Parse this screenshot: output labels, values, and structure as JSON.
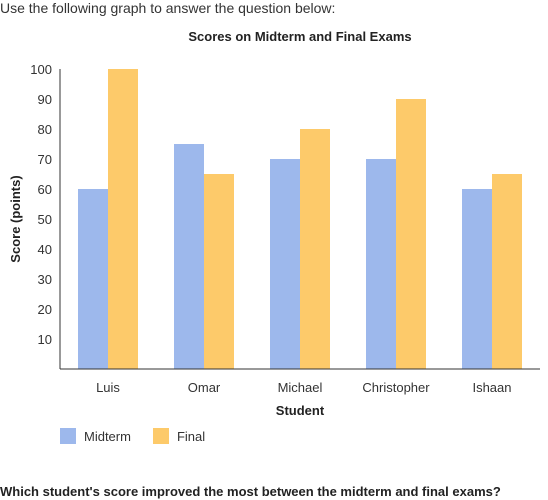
{
  "intro_text": "Use the following graph to answer the question below:",
  "question_text": "Which student's score improved the most between the midterm and final exams?",
  "colors": {
    "midterm": "#9db8ec",
    "final": "#fdca6a",
    "axis": "#333333"
  },
  "chart_data": {
    "type": "bar",
    "title": "Scores on Midterm and Final Exams",
    "xlabel": "Student",
    "ylabel": "Score (points)",
    "ylim": [
      0,
      100
    ],
    "yticks": [
      10,
      20,
      30,
      40,
      50,
      60,
      70,
      80,
      90,
      100
    ],
    "grid": false,
    "legend_position": "bottom-left",
    "categories": [
      "Luis",
      "Omar",
      "Michael",
      "Christopher",
      "Ishaan"
    ],
    "series": [
      {
        "name": "Midterm",
        "values": [
          60,
          75,
          70,
          70,
          60
        ]
      },
      {
        "name": "Final",
        "values": [
          100,
          65,
          80,
          90,
          65
        ]
      }
    ]
  }
}
